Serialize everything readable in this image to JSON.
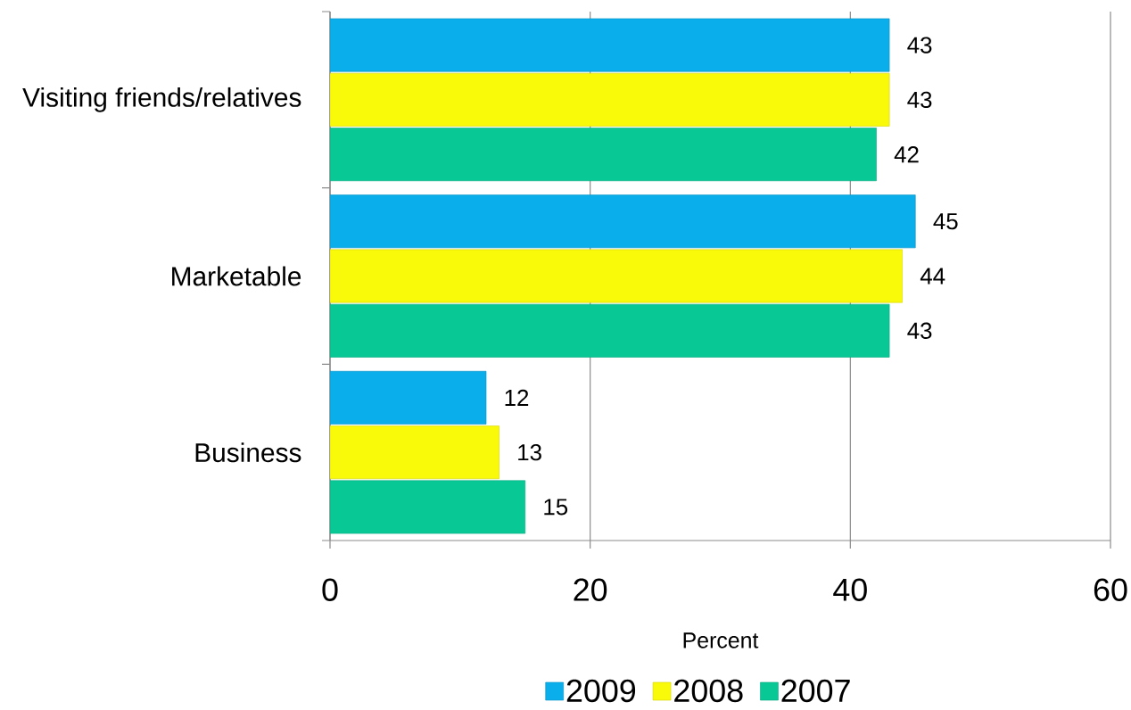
{
  "chart_data": {
    "type": "bar",
    "orientation": "horizontal",
    "categories": [
      "Visiting friends/relatives",
      "Marketable",
      "Business"
    ],
    "series": [
      {
        "name": "2009",
        "color": "#0aaeea",
        "values": [
          43,
          45,
          12
        ]
      },
      {
        "name": "2008",
        "color": "#f9f90a",
        "values": [
          43,
          44,
          13
        ]
      },
      {
        "name": "2007",
        "color": "#08c896",
        "values": [
          42,
          43,
          15
        ]
      }
    ],
    "xlabel": "Percent",
    "xlim": [
      0,
      60
    ],
    "xticks": [
      0,
      20,
      40,
      60
    ],
    "grid": "x",
    "legend": "bottom",
    "data_labels": true
  }
}
